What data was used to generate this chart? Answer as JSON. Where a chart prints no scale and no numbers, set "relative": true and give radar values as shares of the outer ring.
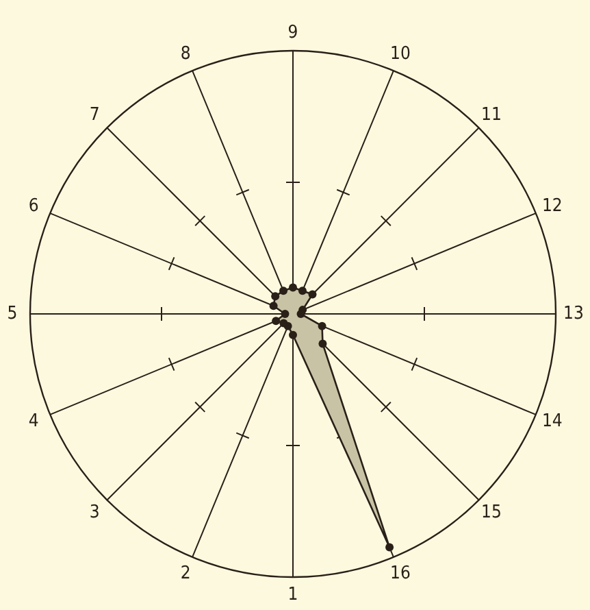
{
  "chart_data": {
    "type": "radar",
    "relative": true,
    "grid": true,
    "marker": "circle",
    "categories": [
      "9",
      "10",
      "11",
      "12",
      "13",
      "14",
      "15",
      "16",
      "1",
      "2",
      "3",
      "4",
      "5",
      "6",
      "7",
      "8"
    ],
    "series": [
      {
        "color": "#c9c3a6",
        "values": [
          0.1,
          0.095,
          0.105,
          0.04,
          0.03,
          0.12,
          0.16,
          0.96,
          0.08,
          0.05,
          0.05,
          0.07,
          0.03,
          0.08,
          0.095,
          0.095
        ]
      }
    ]
  }
}
